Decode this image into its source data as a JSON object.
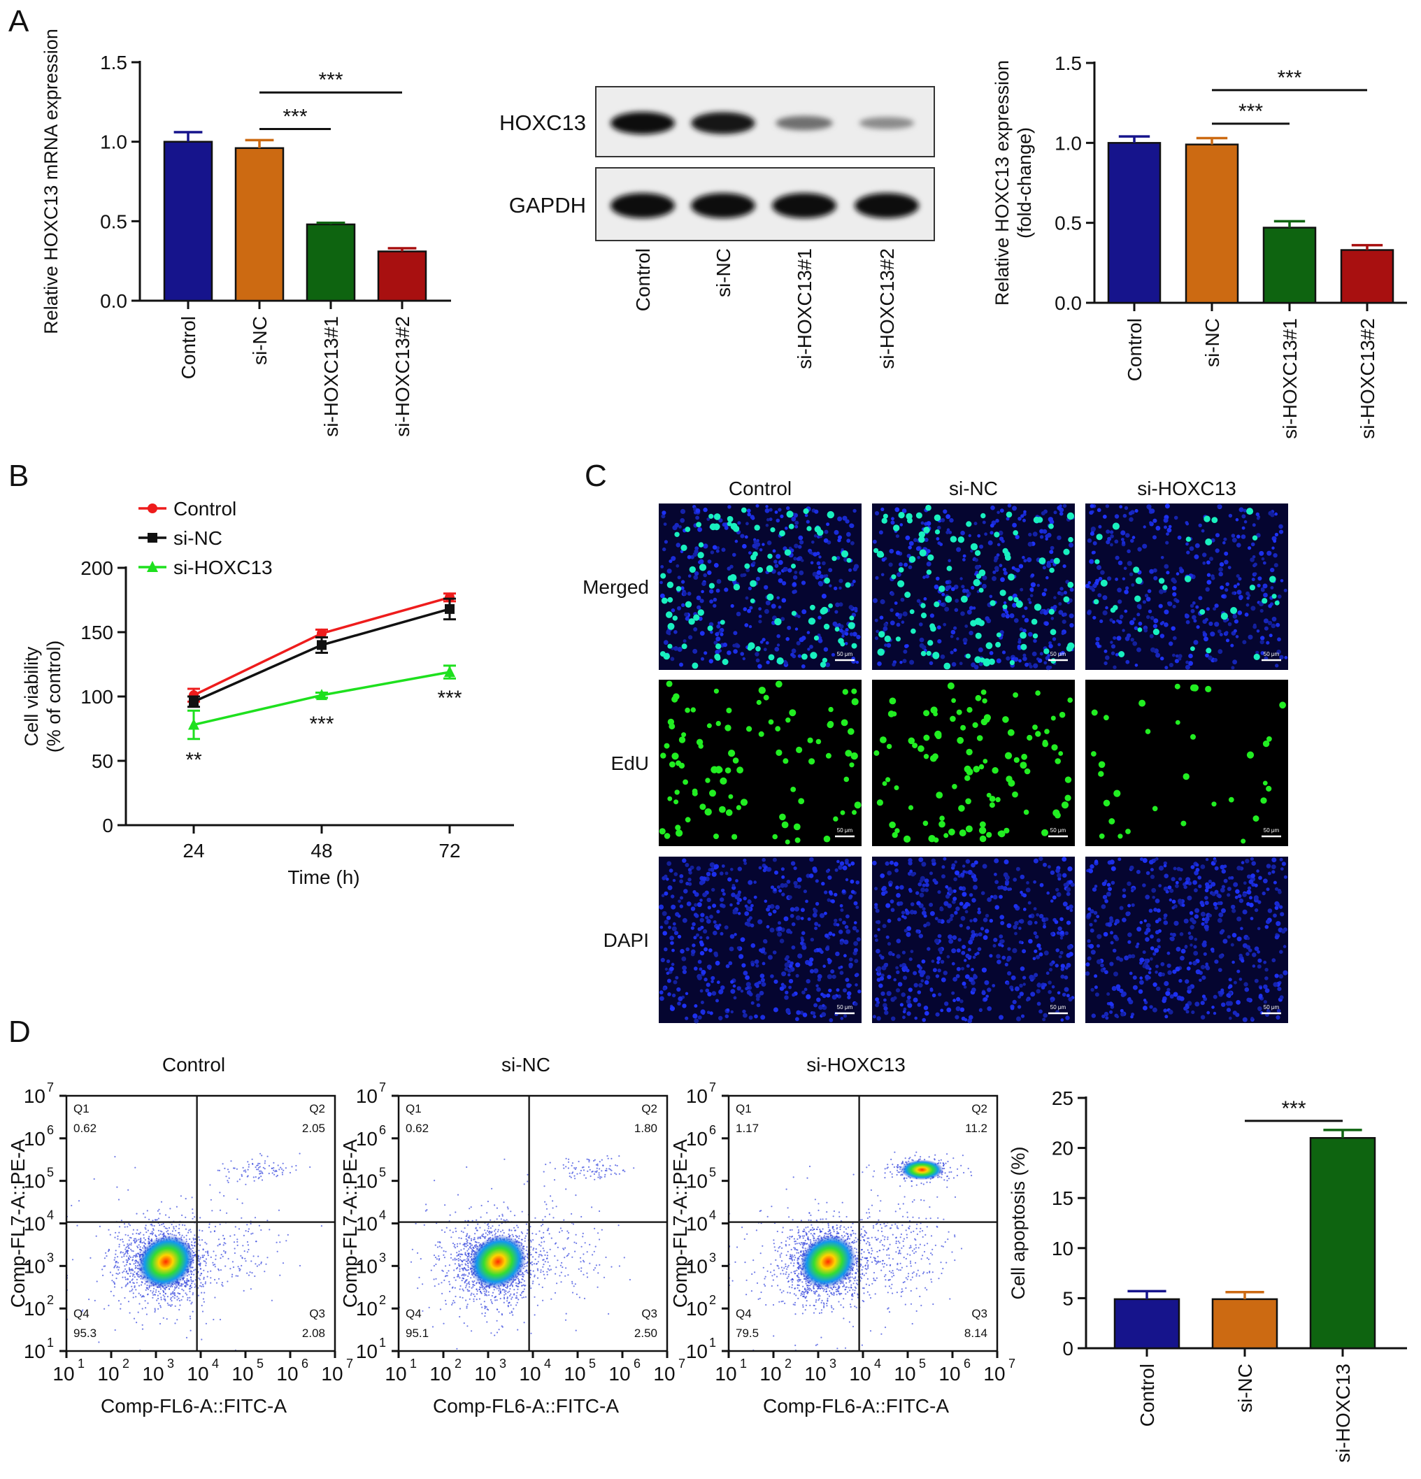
{
  "figure": {
    "panel_labels": [
      "A",
      "B",
      "C",
      "D"
    ]
  },
  "chart_data": [
    {
      "id": "A1",
      "type": "bar",
      "ylabel": "Relative HOXC13 mRNA expression",
      "ylim": [
        0,
        1.5
      ],
      "yticks": [
        "0.0",
        "0.5",
        "1.0",
        "1.5"
      ],
      "categories": [
        "Control",
        "si-NC",
        "si-HOXC13#1",
        "si-HOXC13#2"
      ],
      "values": [
        1.0,
        0.96,
        0.48,
        0.31
      ],
      "errors": [
        0.06,
        0.05,
        0.01,
        0.02
      ],
      "colors": [
        "#16148c",
        "#cc6a12",
        "#0e6410",
        "#a81010"
      ],
      "annotations": [
        {
          "from": 1,
          "to": 2,
          "y": 1.08,
          "label": "***"
        },
        {
          "from": 1,
          "to": 3,
          "y": 1.31,
          "label": "***"
        }
      ]
    },
    {
      "id": "A_blot",
      "type": "table",
      "rows": [
        "HOXC13",
        "GAPDH"
      ],
      "lanes": [
        "Control",
        "si-NC",
        "si-HOXC13#1",
        "si-HOXC13#2"
      ],
      "band_intensity": [
        [
          1.0,
          0.97,
          0.48,
          0.33
        ],
        [
          1.0,
          1.0,
          1.0,
          1.0
        ]
      ]
    },
    {
      "id": "A2",
      "type": "bar",
      "ylabel": "Relative HOXC13 expression (fold-change)",
      "ylabel_lines": [
        "Relative HOXC13 expression",
        "(fold-change)"
      ],
      "ylim": [
        0,
        1.5
      ],
      "yticks": [
        "0.0",
        "0.5",
        "1.0",
        "1.5"
      ],
      "categories": [
        "Control",
        "si-NC",
        "si-HOXC13#1",
        "si-HOXC13#2"
      ],
      "values": [
        1.0,
        0.99,
        0.47,
        0.33
      ],
      "errors": [
        0.04,
        0.04,
        0.04,
        0.03
      ],
      "colors": [
        "#16148c",
        "#cc6a12",
        "#0e6410",
        "#a81010"
      ],
      "annotations": [
        {
          "from": 1,
          "to": 2,
          "y": 1.12,
          "label": "***"
        },
        {
          "from": 1,
          "to": 3,
          "y": 1.33,
          "label": "***"
        }
      ]
    },
    {
      "id": "B",
      "type": "line",
      "xlabel": "Time (h)",
      "ylabel_lines": [
        "Cell viability",
        "(% of control)"
      ],
      "x": [
        24,
        48,
        72
      ],
      "xticks": [
        "24",
        "48",
        "72"
      ],
      "ylim": [
        0,
        200
      ],
      "yticks": [
        "0",
        "50",
        "100",
        "150",
        "200"
      ],
      "series": [
        {
          "name": "Control",
          "color": "#ee1c1c",
          "marker": "circle",
          "values": [
            101,
            149,
            177
          ],
          "errors": [
            5,
            3,
            3
          ]
        },
        {
          "name": "si-NC",
          "color": "#111111",
          "marker": "square",
          "values": [
            96,
            140,
            168
          ],
          "errors": [
            4,
            6,
            8
          ]
        },
        {
          "name": "si-HOXC13",
          "color": "#1ee01e",
          "marker": "triangle",
          "values": [
            78,
            101,
            119
          ],
          "errors": [
            11,
            2,
            5
          ]
        }
      ],
      "annotations": [
        {
          "x": 24,
          "y": 52,
          "label": "**"
        },
        {
          "x": 48,
          "y": 80,
          "label": "***"
        },
        {
          "x": 72,
          "y": 100,
          "label": "***"
        }
      ]
    },
    {
      "id": "C",
      "type": "heatmap",
      "columns": [
        "Control",
        "si-NC",
        "si-HOXC13"
      ],
      "rows": [
        "Merged",
        "EdU",
        "DAPI"
      ],
      "scale_bar": "50 μm",
      "edu_relative_density": [
        1.0,
        1.1,
        0.35
      ]
    },
    {
      "id": "D_flow",
      "type": "scatter",
      "xlabel": "Comp-FL6-A::FITC-A",
      "ylabel": "Comp-FL7-A::PE-A",
      "xticks": [
        "10",
        "10",
        "10",
        "10",
        "10",
        "10",
        "10"
      ],
      "tick_exponents": [
        "1",
        "2",
        "3",
        "4",
        "5",
        "6",
        "7"
      ],
      "quadrant_labels": [
        "Q1",
        "Q2",
        "Q3",
        "Q4"
      ],
      "plots": [
        {
          "title": "Control",
          "Q1": "0.62",
          "Q2": "2.05",
          "Q3": "2.08",
          "Q4": "95.3"
        },
        {
          "title": "si-NC",
          "Q1": "0.62",
          "Q2": "1.80",
          "Q3": "2.50",
          "Q4": "95.1"
        },
        {
          "title": "si-HOXC13",
          "Q1": "1.17",
          "Q2": "11.2",
          "Q3": "8.14",
          "Q4": "79.5"
        }
      ]
    },
    {
      "id": "D_bar",
      "type": "bar",
      "ylabel": "Cell apoptosis (%)",
      "ylim": [
        0,
        25
      ],
      "yticks": [
        "0",
        "5",
        "10",
        "15",
        "20",
        "25"
      ],
      "categories": [
        "Control",
        "si-NC",
        "si-HOXC13"
      ],
      "values": [
        4.9,
        4.9,
        21.0
      ],
      "errors": [
        0.8,
        0.7,
        0.8
      ],
      "colors": [
        "#16148c",
        "#cc6a12",
        "#0e6410"
      ],
      "annotations": [
        {
          "from": 1,
          "to": 2,
          "y": 22.7,
          "label": "***"
        }
      ]
    }
  ]
}
